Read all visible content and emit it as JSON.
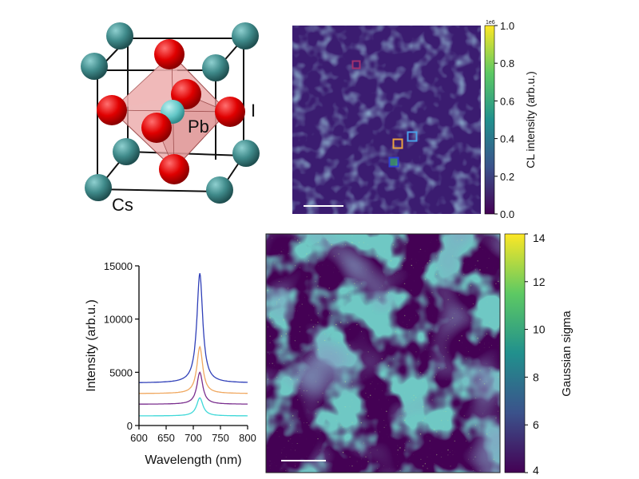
{
  "crystal": {
    "labels": {
      "pb": "Pb",
      "i": "I",
      "cs": "Cs"
    },
    "colors": {
      "cs": "#3f8a8a",
      "i": "#e80000",
      "pb": "#62c6c6",
      "octahedron": "#e9a3a3"
    }
  },
  "colors": {
    "map_background": "#3b1c70",
    "axis": "#000000"
  },
  "colormap": [
    "#440154",
    "#3b528b",
    "#21908d",
    "#5dc963",
    "#fde725"
  ],
  "chart_data": [
    {
      "type": "heatmap",
      "panel": "cl-intensity-map",
      "colorbar": {
        "label": "CL intensity (arb.u.)",
        "multiplier": "1e6",
        "range": [
          0,
          1.0
        ],
        "ticks": [
          "0.0",
          "0.2",
          "0.4",
          "0.6",
          "0.8",
          "1.0"
        ]
      },
      "markers": [
        {
          "color": "#a0306e"
        },
        {
          "color": "#4aa0e8"
        },
        {
          "color": "#e8a040"
        },
        {
          "color": "#2f3fd0"
        }
      ],
      "scalebar": true
    },
    {
      "type": "line",
      "panel": "cl-spectra",
      "xlabel": "Wavelength (nm)",
      "ylabel": "Intensity (arb.u.)",
      "xlim": [
        600,
        800
      ],
      "ylim": [
        0,
        15000
      ],
      "xticks": [
        "600",
        "650",
        "700",
        "750",
        "800"
      ],
      "yticks": [
        "0",
        "5000",
        "10000",
        "15000"
      ],
      "peak_center_nm": 712,
      "series": [
        {
          "color": "#2f3fb8",
          "baseline": 4000,
          "peak": 14300,
          "width_nm": 6.5
        },
        {
          "color": "#f0a860",
          "baseline": 3000,
          "peak": 7400,
          "width_nm": 6.5
        },
        {
          "color": "#7a2e8e",
          "baseline": 2000,
          "peak": 5000,
          "width_nm": 6.5
        },
        {
          "color": "#3fd8d8",
          "baseline": 900,
          "peak": 2600,
          "width_nm": 7
        }
      ]
    },
    {
      "type": "heatmap",
      "panel": "gaussian-sigma-map",
      "colorbar": {
        "label": "Gaussian sigma",
        "range": [
          4,
          14
        ],
        "ticks": [
          "4",
          "6",
          "8",
          "10",
          "12",
          "14"
        ]
      },
      "scalebar": true
    }
  ]
}
